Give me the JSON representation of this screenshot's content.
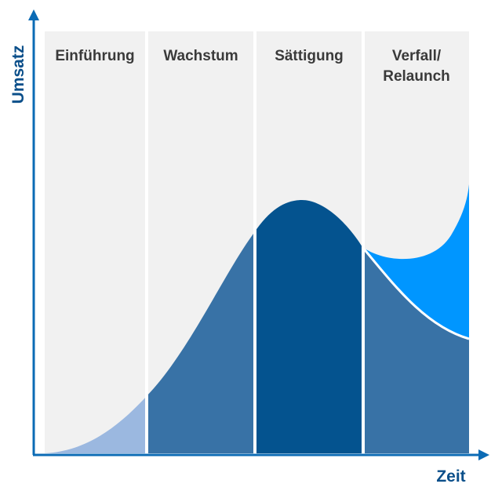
{
  "axes": {
    "y_label": "Umsatz",
    "x_label": "Zeit"
  },
  "phases": [
    {
      "lines": [
        "Einführung"
      ]
    },
    {
      "lines": [
        "Wachstum"
      ]
    },
    {
      "lines": [
        "Sättigung"
      ]
    },
    {
      "lines": [
        "Verfall/",
        "Relaunch"
      ]
    }
  ]
}
